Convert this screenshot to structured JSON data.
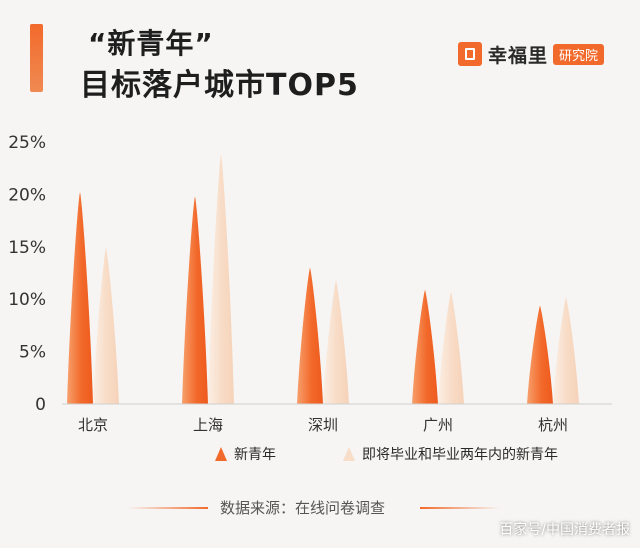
{
  "header": {
    "title_line1": "“新青年”",
    "title_line2": "目标落户城市TOP5"
  },
  "logo": {
    "name": "幸福里",
    "badge": "研究院"
  },
  "chart_data": {
    "type": "bar",
    "title": "“新青年”目标落户城市TOP5",
    "categories": [
      "北京",
      "上海",
      "深圳",
      "广州",
      "杭州"
    ],
    "series": [
      {
        "name": "新青年",
        "values": [
          20.2,
          19.8,
          13.0,
          10.9,
          9.4
        ],
        "color": "#f26a2b"
      },
      {
        "name": "即将毕业和毕业两年内的新青年",
        "values": [
          14.9,
          23.8,
          11.8,
          10.7,
          10.2
        ],
        "color": "#f8ddc8"
      }
    ],
    "yticks": [
      "0",
      "5%",
      "10%",
      "15%",
      "20%",
      "25%"
    ],
    "ylim": [
      0,
      25
    ],
    "grid": false,
    "legend": "bottom"
  },
  "source": {
    "text": "数据来源：在线问卷调查"
  },
  "watermark": "百家号/中国消费者报"
}
